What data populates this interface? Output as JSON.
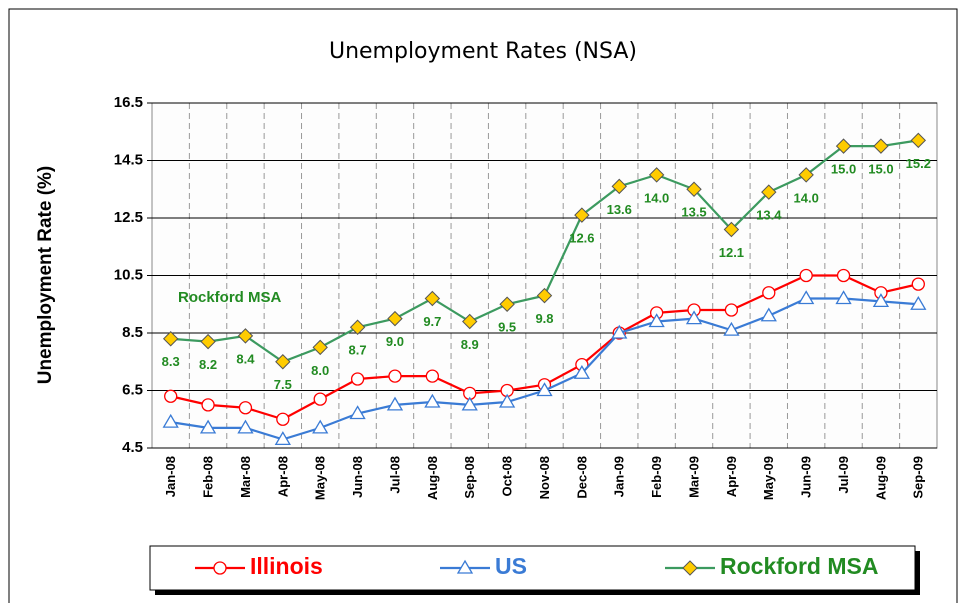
{
  "chart_data": {
    "type": "line",
    "title": "Unemployment Rates (NSA)",
    "y_label": "Unemployment Rate (%)",
    "annotation": "Rockford MSA",
    "categories": [
      "Jan-08",
      "Feb-08",
      "Mar-08",
      "Apr-08",
      "May-08",
      "Jun-08",
      "Jul-08",
      "Aug-08",
      "Sep-08",
      "Oct-08",
      "Nov-08",
      "Dec-08",
      "Jan-09",
      "Feb-09",
      "Mar-09",
      "Apr-09",
      "May-09",
      "Jun-09",
      "Jul-09",
      "Aug-09",
      "Sep-09"
    ],
    "series": [
      {
        "name": "Illinois",
        "color": "#ff0000",
        "marker": "circle",
        "values": [
          6.3,
          6.0,
          5.9,
          5.5,
          6.2,
          6.9,
          7.0,
          7.0,
          6.4,
          6.5,
          6.7,
          7.4,
          8.5,
          9.2,
          9.3,
          9.3,
          9.9,
          10.5,
          10.5,
          9.9,
          10.2
        ]
      },
      {
        "name": "US",
        "color": "#3a7bd5",
        "marker": "triangle",
        "values": [
          5.4,
          5.2,
          5.2,
          4.8,
          5.2,
          5.7,
          6.0,
          6.1,
          6.0,
          6.1,
          6.5,
          7.1,
          8.5,
          8.9,
          9.0,
          8.6,
          9.1,
          9.7,
          9.7,
          9.6,
          9.5
        ]
      },
      {
        "name": "Rockford MSA",
        "color": "#3c9a5f",
        "marker": "diamond",
        "values": [
          8.3,
          8.2,
          8.4,
          7.5,
          8.0,
          8.7,
          9.0,
          9.7,
          8.9,
          9.5,
          9.8,
          12.6,
          13.6,
          14.0,
          13.5,
          12.1,
          13.4,
          14.0,
          15.0,
          15.0,
          15.2
        ],
        "value_labels": [
          "8.3",
          "8.2",
          "8.4",
          "7.5",
          "8.0",
          "8.7",
          "9.0",
          "9.7",
          "8.9",
          "9.5",
          "9.8",
          "12.6",
          "13.6",
          "14.0",
          "13.5",
          "12.1",
          "13.4",
          "14.0",
          "15.0",
          "15.0",
          "15.2"
        ]
      }
    ],
    "ylim": [
      4.5,
      16.5
    ],
    "yticks": [
      4.5,
      6.5,
      8.5,
      10.5,
      12.5,
      14.5,
      16.5
    ],
    "grid": true,
    "legend": "bottom"
  }
}
